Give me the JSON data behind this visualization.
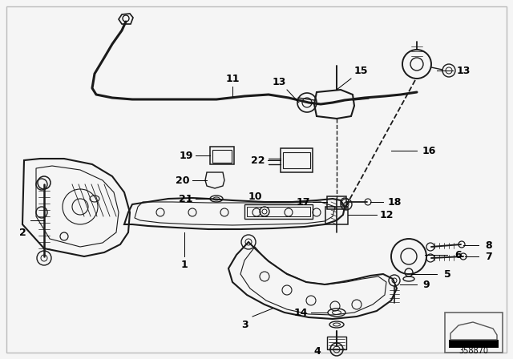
{
  "bg_color": "#f5f5f5",
  "fig_width": 6.4,
  "fig_height": 4.48,
  "dpi": 100,
  "line_color": "#1a1a1a",
  "label_color": "#000000",
  "label_fontsize": 9,
  "part_number_id": "358870",
  "border_color": "#cccccc"
}
